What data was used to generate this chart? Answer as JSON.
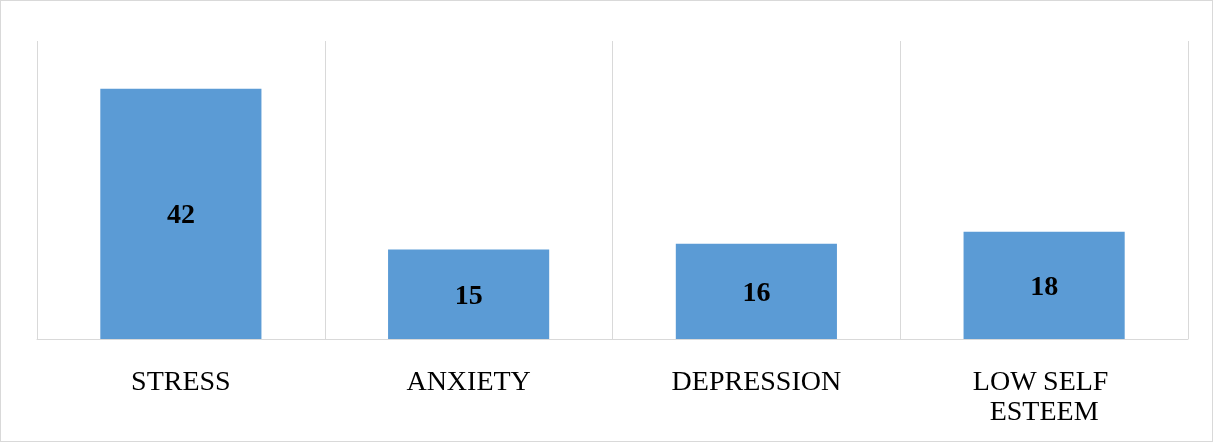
{
  "chart_data": {
    "type": "bar",
    "categories": [
      "STRESS",
      "ANXIETY",
      "DEPRESSION",
      "LOW SELF ESTEEM"
    ],
    "values": [
      42,
      15,
      16,
      18
    ],
    "color": "#5b9bd5",
    "ylim": [
      0,
      50
    ],
    "data_labels": true,
    "grid": "x"
  }
}
